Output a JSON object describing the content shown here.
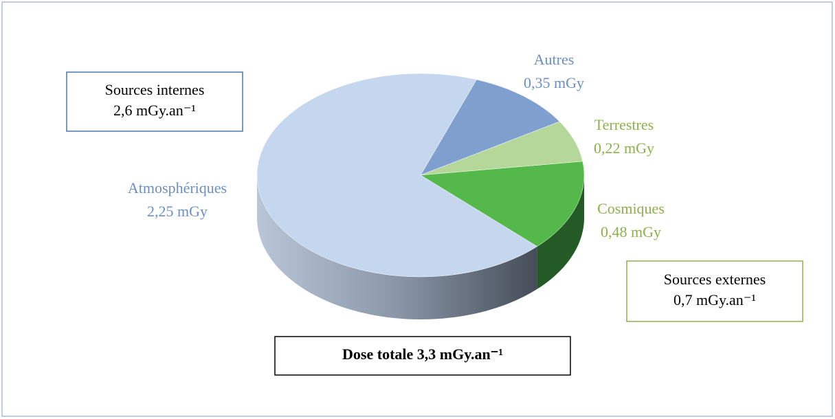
{
  "chart_data": {
    "type": "pie",
    "categories": [
      "Autres",
      "Terrestres",
      "Cosmiques",
      "Atmosphériques"
    ],
    "values": [
      0.35,
      0.22,
      0.48,
      2.25
    ],
    "value_labels": [
      "0,35 mGy",
      "0,22 mGy",
      "0,48 mGy",
      "2,25 mGy"
    ],
    "colors": [
      "#7fa0cf",
      "#b5d89a",
      "#55b84a",
      "#c5d7ee"
    ],
    "label_colors": [
      "#6b8fc4",
      "#8db04a",
      "#8db04a",
      "#6b8fc4"
    ],
    "annotations": [
      {
        "lines": [
          "Sources internes",
          "2,6 mGy.an⁻¹"
        ],
        "color": "#4a75b0"
      },
      {
        "lines": [
          "Sources externes",
          "0,7 mGy.an⁻¹"
        ],
        "color": "#8db04a"
      },
      {
        "lines": [
          "Dose totale 3,3 mGy.an⁻¹"
        ],
        "color": "#000000"
      }
    ]
  }
}
